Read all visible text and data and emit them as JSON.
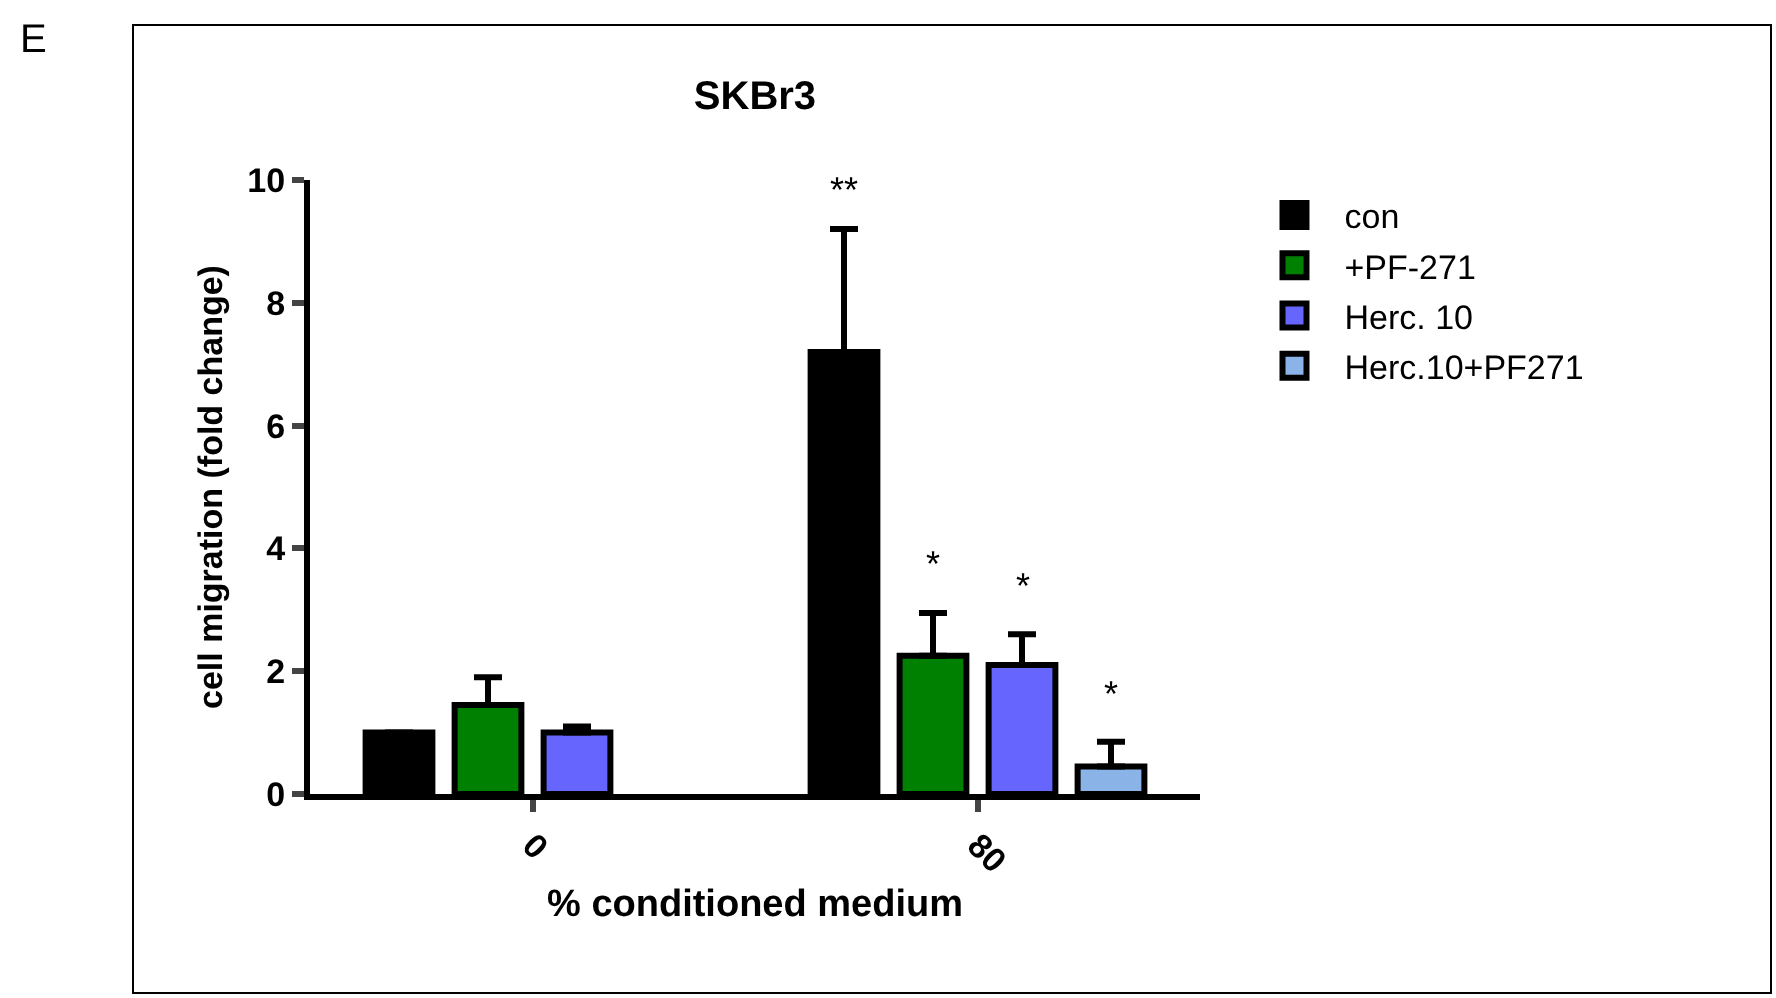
{
  "chart_data": {
    "type": "bar",
    "title": "SKBr3",
    "xlabel": "% conditioned medium",
    "ylabel": "cell migration (fold change)",
    "categories": [
      "0",
      "80"
    ],
    "series": [
      {
        "name": "con",
        "color": "#000000",
        "values": [
          1.0,
          7.2
        ],
        "errors": [
          null,
          [
            7.2,
            9.2
          ]
        ]
      },
      {
        "name": "+PF-271",
        "color": "#008000",
        "values": [
          1.45,
          2.25
        ],
        "errors": [
          [
            1.45,
            1.9
          ],
          [
            2.25,
            2.95
          ]
        ]
      },
      {
        "name": "Herc. 10",
        "color": "#6666ff",
        "values": [
          1.0,
          2.1
        ],
        "errors": [
          [
            1.0,
            1.1
          ],
          [
            2.1,
            2.6
          ]
        ]
      },
      {
        "name": "Herc.10+PF271",
        "color": "#8ab4e8",
        "values": [
          null,
          0.45
        ],
        "errors": [
          null,
          [
            0.45,
            0.85
          ]
        ]
      }
    ],
    "ylim": [
      0,
      10
    ],
    "yticks": [
      0,
      2,
      4,
      6,
      8,
      10
    ],
    "grid": false,
    "legend": "right",
    "annotations": [
      "E",
      "**",
      "*",
      "*",
      "*"
    ]
  }
}
